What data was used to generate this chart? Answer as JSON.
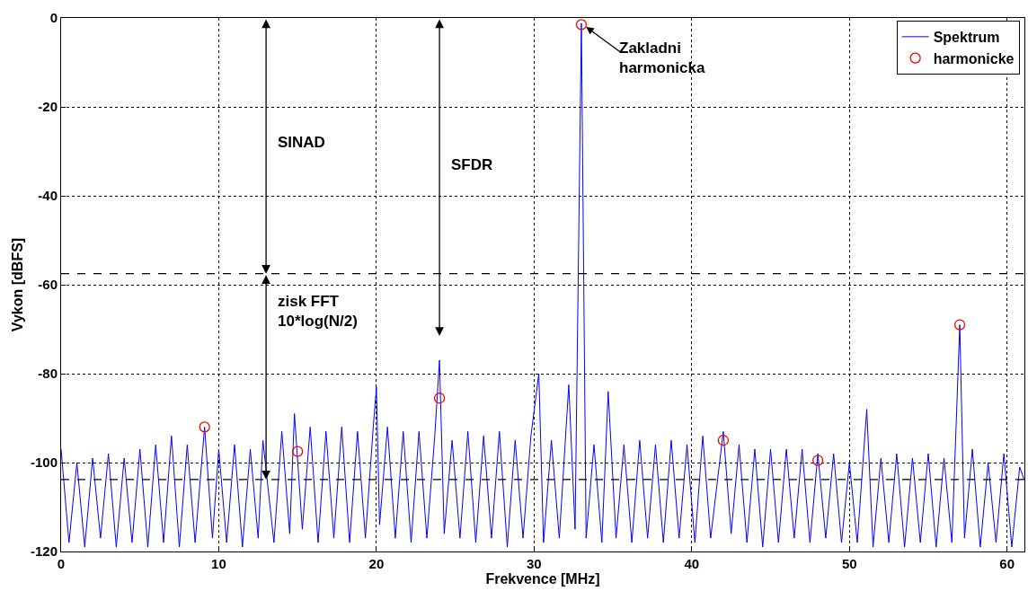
{
  "chart_data": {
    "type": "line",
    "xlabel": "Frekvence [MHz]",
    "ylabel": "Vykon [dBFS]",
    "xlim": [
      0,
      61.1
    ],
    "xticks": [
      0,
      10,
      20,
      30,
      40,
      50,
      60
    ],
    "ylim": [
      -120,
      0
    ],
    "yticks": [
      -120,
      -100,
      -80,
      -60,
      -40,
      -20,
      0
    ],
    "grid": true,
    "legend": "top right",
    "series": [
      {
        "name": "Spektrum",
        "color": "#0000ff",
        "marker": "none",
        "x": [
          0.0,
          0.5,
          1.0,
          1.5,
          2.0,
          2.5,
          3.0,
          3.5,
          4.0,
          4.5,
          5.0,
          5.5,
          6.0,
          6.5,
          7.0,
          7.5,
          8.0,
          8.5,
          9.1,
          9.6,
          10.0,
          10.5,
          11.0,
          11.5,
          12.0,
          12.5,
          12.8,
          13.5,
          14.0,
          14.5,
          14.8,
          15.3,
          15.8,
          16.3,
          16.8,
          17.3,
          17.8,
          18.3,
          18.8,
          19.3,
          19.8,
          20.0,
          20.2,
          20.7,
          21.2,
          21.7,
          22.2,
          22.7,
          23.2,
          23.7,
          24.0,
          24.3,
          24.8,
          25.3,
          25.8,
          26.3,
          26.8,
          27.3,
          27.8,
          28.3,
          28.8,
          29.3,
          29.8,
          30.3,
          30.6,
          31.1,
          31.6,
          32.2,
          32.6,
          33.0,
          33.3,
          33.8,
          34.3,
          34.7,
          35.2,
          35.7,
          36.2,
          36.7,
          37.2,
          37.7,
          38.2,
          38.7,
          39.2,
          39.7,
          40.2,
          40.7,
          41.2,
          42.0,
          42.5,
          43.0,
          43.5,
          44.0,
          44.5,
          45.0,
          45.5,
          46.0,
          46.5,
          47.0,
          47.5,
          48.0,
          48.5,
          49.0,
          49.5,
          50.0,
          50.5,
          51.1,
          51.5,
          52.0,
          52.5,
          53.0,
          53.5,
          54.0,
          54.5,
          55.0,
          55.5,
          56.0,
          56.5,
          57.0,
          57.3,
          57.8,
          58.3,
          58.8,
          59.3,
          59.8,
          60.3,
          60.8,
          61.1
        ],
        "values": [
          -97,
          -118,
          -100,
          -119,
          -99,
          -117,
          -98,
          -119,
          -99,
          -118,
          -97,
          -119,
          -96,
          -118,
          -94,
          -119,
          -96,
          -118,
          -92,
          -117,
          -97,
          -118,
          -96,
          -119,
          -97,
          -117,
          -95,
          -118,
          -93,
          -116,
          -89,
          -115,
          -92,
          -118,
          -93,
          -117,
          -92,
          -118,
          -93,
          -117,
          -92,
          -83,
          -114,
          -92,
          -117,
          -93,
          -118,
          -93,
          -117,
          -94,
          -77,
          -116,
          -95,
          -117,
          -93,
          -118,
          -94,
          -117,
          -93,
          -119,
          -95,
          -117,
          -94,
          -80,
          -118,
          -95,
          -117,
          -82.5,
          -115,
          -1.2,
          -117,
          -96,
          -118,
          -84,
          -117,
          -96,
          -118,
          -95,
          -117,
          -96,
          -118,
          -95,
          -117,
          -96,
          -118,
          -94,
          -117,
          -93,
          -116,
          -96,
          -118,
          -97,
          -119,
          -97,
          -118,
          -97,
          -117,
          -97,
          -118,
          -98,
          -117,
          -98,
          -118,
          -100,
          -118,
          -88,
          -119,
          -99,
          -118,
          -98,
          -119,
          -99,
          -118,
          -98,
          -119,
          -99,
          -118,
          -69,
          -117,
          -97,
          -119,
          -100,
          -118,
          -98,
          -119,
          -101,
          -104
        ]
      },
      {
        "name": "harmonicke",
        "type": "scatter",
        "color": "#ff0000",
        "marker": "circle",
        "x": [
          9.1,
          15,
          24,
          33,
          42,
          48,
          57
        ],
        "values": [
          -92,
          -97.5,
          -85.5,
          -1.5,
          -95,
          -99.5,
          -69
        ]
      }
    ],
    "ref_lines": [
      {
        "axis": "y",
        "value": -57.5,
        "color": "#000000",
        "line_style": "dashed"
      },
      {
        "axis": "y",
        "value": -103.8,
        "color": "#000000",
        "line_style": "dashed"
      }
    ],
    "annotations": [
      "SINAD",
      "SFDR",
      "zisk FFT\n10*log(N/2)",
      {
        "text": "Zakladni\nharmonicka",
        "x": 33,
        "y": -1.5
      }
    ]
  }
}
